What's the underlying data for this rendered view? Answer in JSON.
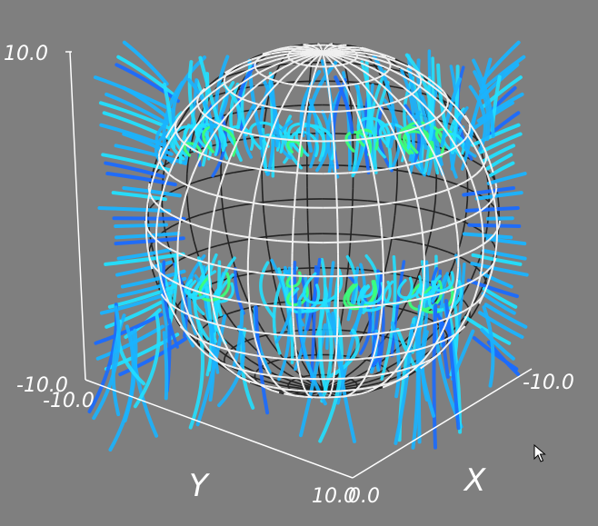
{
  "colors": {
    "background": "#7f7f7f",
    "axis_line": "#ffffff",
    "sphere_back": "#1a1a1a",
    "sphere_front": "#f0f0f0",
    "stream_low": "#1a6cff",
    "stream_mid": "#1ab4ff",
    "stream_high": "#22e0ff",
    "stream_peak": "#3cff7a"
  },
  "axes": {
    "z_max_label": "10.0",
    "z_min_label": "-10.0",
    "y_min_label": "-10.0",
    "y_max_label": "10.0",
    "x_min_label": "0.0",
    "x_max_label": "-10.0",
    "y_title": "Y",
    "x_title": "X"
  },
  "scene": {
    "object": "sphere-wireframe",
    "visualization": "streamlines",
    "cursor_icon": "arrow-cursor-icon"
  }
}
